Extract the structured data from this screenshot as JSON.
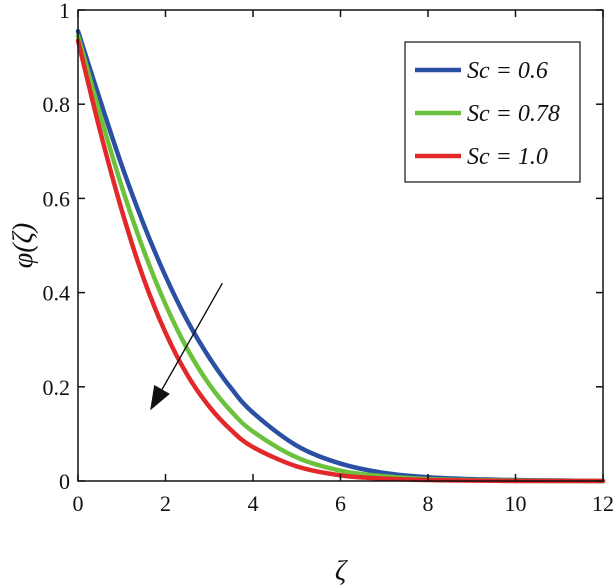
{
  "chart_data": {
    "type": "line",
    "xlabel": "ζ",
    "ylabel": "φ(ζ)",
    "xlim": [
      0,
      12
    ],
    "ylim": [
      0,
      1
    ],
    "xticks": [
      0,
      2,
      4,
      6,
      8,
      10,
      12
    ],
    "yticks": [
      0,
      0.2,
      0.4,
      0.6,
      0.8,
      1
    ],
    "xtick_labels": [
      "0",
      "2",
      "4",
      "6",
      "8",
      "10",
      "12"
    ],
    "ytick_labels": [
      "0",
      "0.2",
      "0.4",
      "0.6",
      "0.8",
      "1"
    ],
    "grid": false,
    "legend_position": "top-right",
    "series": [
      {
        "name": "Sc = 0.6",
        "color": "#2b4fa3",
        "x": [
          0,
          0.5,
          1,
          1.5,
          2,
          2.5,
          3,
          3.5,
          4,
          5,
          6,
          7,
          8,
          9,
          10,
          11,
          12
        ],
        "y": [
          0.955,
          0.81,
          0.67,
          0.545,
          0.435,
          0.34,
          0.262,
          0.197,
          0.145,
          0.075,
          0.037,
          0.017,
          0.008,
          0.004,
          0.002,
          0.001,
          0.0
        ]
      },
      {
        "name": "Sc = 0.78",
        "color": "#6cc13c",
        "x": [
          0,
          0.5,
          1,
          1.5,
          2,
          2.5,
          3,
          3.5,
          4,
          5,
          6,
          7,
          8,
          9,
          10,
          11,
          12
        ],
        "y": [
          0.945,
          0.78,
          0.625,
          0.49,
          0.375,
          0.28,
          0.205,
          0.148,
          0.105,
          0.05,
          0.022,
          0.01,
          0.004,
          0.002,
          0.001,
          0.0,
          0.0
        ]
      },
      {
        "name": "Sc = 1.0",
        "color": "#e3282a",
        "x": [
          0,
          0.5,
          1,
          1.5,
          2,
          2.5,
          3,
          3.5,
          4,
          5,
          6,
          7,
          8,
          9,
          10,
          11,
          12
        ],
        "y": [
          0.935,
          0.745,
          0.575,
          0.43,
          0.315,
          0.225,
          0.158,
          0.108,
          0.072,
          0.031,
          0.012,
          0.005,
          0.002,
          0.001,
          0.0,
          0.0,
          0.0
        ]
      }
    ],
    "annotation_arrow": {
      "from": [
        3.3,
        0.42
      ],
      "to": [
        1.65,
        0.15
      ],
      "meaning": "direction of increasing Sc"
    }
  }
}
